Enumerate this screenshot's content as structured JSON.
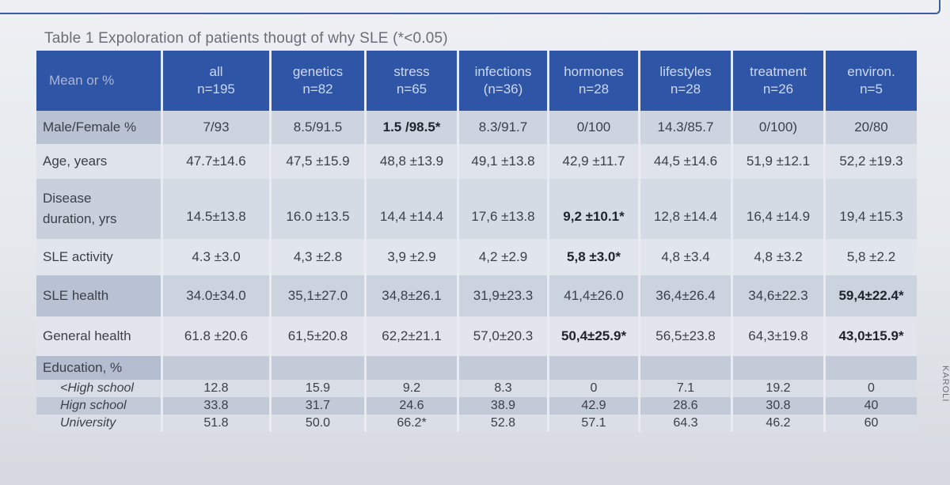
{
  "caption": "Table 1 Expoloration of patients thougt of why SLE (*<0.05)",
  "stamp_text": "KAROLI",
  "header": {
    "corner": "Mean  or %",
    "columns": [
      {
        "name": "all",
        "n": "n=195"
      },
      {
        "name": "genetics",
        "n": "n=82"
      },
      {
        "name": "stress",
        "n": "n=65"
      },
      {
        "name": "infections",
        "n": "(n=36)"
      },
      {
        "name": "hormones",
        "n": "n=28"
      },
      {
        "name": "lifestyles",
        "n": "n=28"
      },
      {
        "name": "treatment",
        "n": "n=26"
      },
      {
        "name": "environ.",
        "n": "n=5"
      }
    ]
  },
  "rows": {
    "male_female": {
      "label": "Male/Female %",
      "values": [
        "7/93",
        "8.5/91.5",
        "1.5 /98.5*",
        "8.3/91.7",
        "0/100",
        "14.3/85.7",
        "0/100)",
        "20/80"
      ]
    },
    "age": {
      "label": "Age, years",
      "values": [
        "47.7±14.6",
        "47,5 ±15.9",
        "48,8 ±13.9",
        "49,1 ±13.8",
        "42,9 ±11.7",
        "44,5 ±14.6",
        "51,9 ±12.1",
        "52,2 ±19.3"
      ]
    },
    "disease": {
      "label_line1": "Disease",
      "label_line2": "duration, yrs",
      "values": [
        "14.5±13.8",
        "16.0  ±13.5",
        "14,4 ±14.4",
        "17,6 ±13.8",
        "9,2 ±10.1*",
        "12,8 ±14.4",
        "16,4 ±14.9",
        "19,4 ±15.3"
      ]
    },
    "activity": {
      "label": "SLE activity",
      "values": [
        "4.3 ±3.0",
        "4,3  ±2.8",
        "3,9 ±2.9",
        "4,2 ±2.9",
        "5,8 ±3.0*",
        "4,8 ±3.4",
        "4,8 ±3.2",
        "5,8 ±2.2"
      ]
    },
    "sle_health": {
      "label": "SLE health",
      "values": [
        "34.0±34.0",
        "35,1±27.0",
        "34,8±26.1",
        "31,9±23.3",
        "41,4±26.0",
        "36,4±26.4",
        "34,6±22.3",
        "59,4±22.4*"
      ]
    },
    "general_health": {
      "label": "General health",
      "values": [
        "61.8 ±20.6",
        "61,5±20.8",
        "62,2±21.1",
        "57,0±20.3",
        "50,4±25.9*",
        "56,5±23.8",
        "64,3±19.8",
        "43,0±15.9*"
      ]
    },
    "education": {
      "label": "Education, %"
    },
    "high_school_less": {
      "label": "<High school",
      "values": [
        "12.8",
        "15.9",
        "9.2",
        "8.3",
        "0",
        "7.1",
        "19.2",
        "0"
      ]
    },
    "high_school": {
      "label": "Hign school",
      "values": [
        "33.8",
        "31.7",
        "24.6",
        "38.9",
        "42.9",
        "28.6",
        "30.8",
        "40"
      ]
    },
    "university": {
      "label": "University",
      "values": [
        "51.8",
        "50.0",
        "66.2*",
        "52.8",
        "57.1",
        "64.3",
        "46.2",
        "60"
      ]
    }
  }
}
